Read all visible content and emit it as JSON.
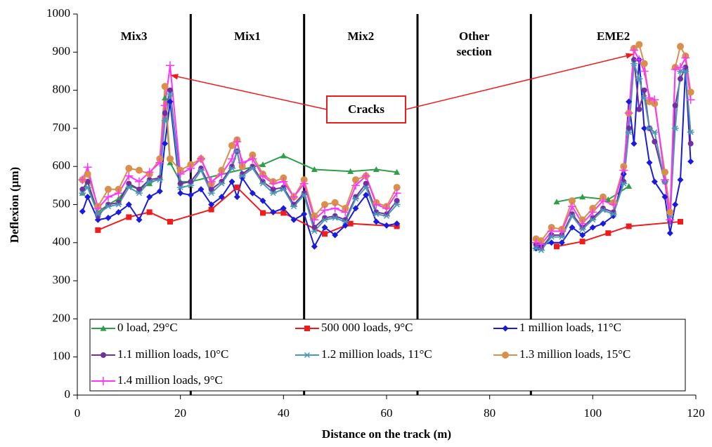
{
  "chart_data": {
    "type": "line",
    "xlabel": "Distance on the track (m)",
    "ylabel": "Deflexion (µm)",
    "xlim": [
      0,
      120
    ],
    "xticks": [
      0,
      20,
      40,
      60,
      80,
      100,
      120
    ],
    "ylim": [
      0,
      1000
    ],
    "yticks": [
      0,
      100,
      200,
      300,
      400,
      500,
      600,
      700,
      800,
      900,
      1000
    ],
    "legend": "bottom",
    "section_boundaries": [
      22,
      44,
      66,
      88
    ],
    "sections": [
      {
        "label": "Mix3"
      },
      {
        "label": "Mix1"
      },
      {
        "label": "Mix2"
      },
      {
        "label": [
          "Other",
          "section"
        ]
      },
      {
        "label": "EME2"
      }
    ],
    "annotation": {
      "text": "Cracks",
      "points": [
        [
          18,
          840
        ],
        [
          108,
          895
        ]
      ]
    },
    "x": [
      1,
      2,
      4,
      6,
      8,
      10,
      12,
      14,
      16,
      17,
      18,
      20,
      22,
      24,
      26,
      28,
      30,
      31,
      32,
      34,
      36,
      38,
      40,
      42,
      44,
      46,
      48,
      50,
      52,
      54,
      56,
      58,
      60,
      62,
      75,
      89,
      90,
      92,
      94,
      96,
      98,
      100,
      102,
      104,
      106,
      107,
      108,
      109,
      110,
      111,
      112,
      114,
      115,
      116,
      117,
      118,
      119
    ],
    "series": [
      {
        "name": "0 load, 29°C",
        "color": "#2e9e48",
        "marker": "triangle",
        "x": [
          1,
          2,
          4,
          6,
          8,
          10,
          12,
          14,
          16,
          17,
          18,
          20,
          22,
          36,
          40,
          46,
          53,
          58,
          62,
          75,
          93,
          98,
          103,
          107
        ],
        "values": [
          530,
          560,
          480,
          500,
          515,
          550,
          540,
          555,
          570,
          780,
          610,
          560,
          560,
          605,
          628,
          592,
          587,
          592,
          585,
          null,
          507,
          520,
          513,
          548
        ]
      },
      {
        "name": "500 000 loads, 9°C",
        "color": "#ee1c1c",
        "marker": "square",
        "x": [
          4,
          10,
          14,
          18,
          26,
          31,
          36,
          40,
          48,
          53,
          62,
          75,
          93,
          98,
          103,
          107,
          117
        ],
        "values": [
          433,
          467,
          480,
          455,
          487,
          545,
          478,
          478,
          423,
          450,
          443,
          null,
          390,
          403,
          425,
          443,
          455
        ]
      },
      {
        "name": "1 million loads, 11°C",
        "color": "#1a1adf",
        "marker": "diamond",
        "values": [
          482,
          520,
          460,
          465,
          480,
          500,
          460,
          520,
          535,
          660,
          770,
          530,
          525,
          540,
          500,
          520,
          560,
          520,
          570,
          530,
          510,
          480,
          490,
          460,
          475,
          390,
          440,
          420,
          445,
          490,
          525,
          455,
          445,
          450,
          null,
          385,
          395,
          400,
          400,
          440,
          420,
          440,
          450,
          470,
          580,
          770,
          660,
          880,
          700,
          610,
          560,
          520,
          425,
          500,
          565,
          855,
          613
        ]
      },
      {
        "name": "1.1 million loads, 10°C",
        "color": "#7030a0",
        "marker": "circle",
        "values": [
          540,
          560,
          470,
          500,
          505,
          555,
          540,
          565,
          570,
          740,
          800,
          555,
          560,
          595,
          540,
          560,
          600,
          640,
          580,
          600,
          560,
          540,
          545,
          500,
          530,
          440,
          465,
          470,
          460,
          520,
          555,
          480,
          475,
          510,
          null,
          395,
          385,
          420,
          420,
          475,
          440,
          465,
          490,
          480,
          560,
          700,
          880,
          750,
          800,
          700,
          665,
          560,
          455,
          760,
          830,
          860,
          660
        ]
      },
      {
        "name": "1.2 million loads, 11°C",
        "color": "#4a98b4",
        "marker": "star",
        "values": [
          530,
          545,
          475,
          495,
          500,
          545,
          530,
          560,
          565,
          720,
          790,
          545,
          550,
          590,
          530,
          555,
          595,
          640,
          575,
          595,
          555,
          530,
          540,
          495,
          525,
          430,
          460,
          465,
          455,
          515,
          545,
          475,
          470,
          500,
          null,
          385,
          380,
          415,
          415,
          470,
          435,
          460,
          485,
          475,
          555,
          690,
          870,
          830,
          780,
          700,
          690,
          560,
          470,
          700,
          850,
          850,
          690
        ]
      },
      {
        "name": "1.3 million loads, 15°C",
        "color": "#d9904a",
        "marker": "bigcircle",
        "values": [
          565,
          580,
          495,
          540,
          540,
          595,
          590,
          580,
          620,
          810,
          620,
          590,
          605,
          620,
          555,
          590,
          655,
          670,
          600,
          630,
          580,
          560,
          570,
          520,
          565,
          470,
          500,
          505,
          490,
          565,
          575,
          505,
          495,
          545,
          null,
          410,
          405,
          440,
          435,
          510,
          460,
          490,
          520,
          505,
          600,
          740,
          910,
          920,
          870,
          770,
          765,
          585,
          480,
          860,
          915,
          890,
          795
        ]
      },
      {
        "name": "1.4 million loads, 9°C",
        "color": "#ff33ff",
        "marker": "plus",
        "values": [
          565,
          598,
          490,
          520,
          530,
          575,
          560,
          585,
          610,
          760,
          865,
          580,
          595,
          620,
          560,
          580,
          620,
          665,
          610,
          620,
          575,
          555,
          560,
          520,
          555,
          460,
          485,
          490,
          480,
          550,
          575,
          500,
          490,
          530,
          null,
          400,
          395,
          430,
          430,
          495,
          450,
          480,
          510,
          500,
          590,
          740,
          905,
          880,
          850,
          780,
          775,
          565,
          460,
          855,
          860,
          885,
          775
        ]
      }
    ]
  }
}
